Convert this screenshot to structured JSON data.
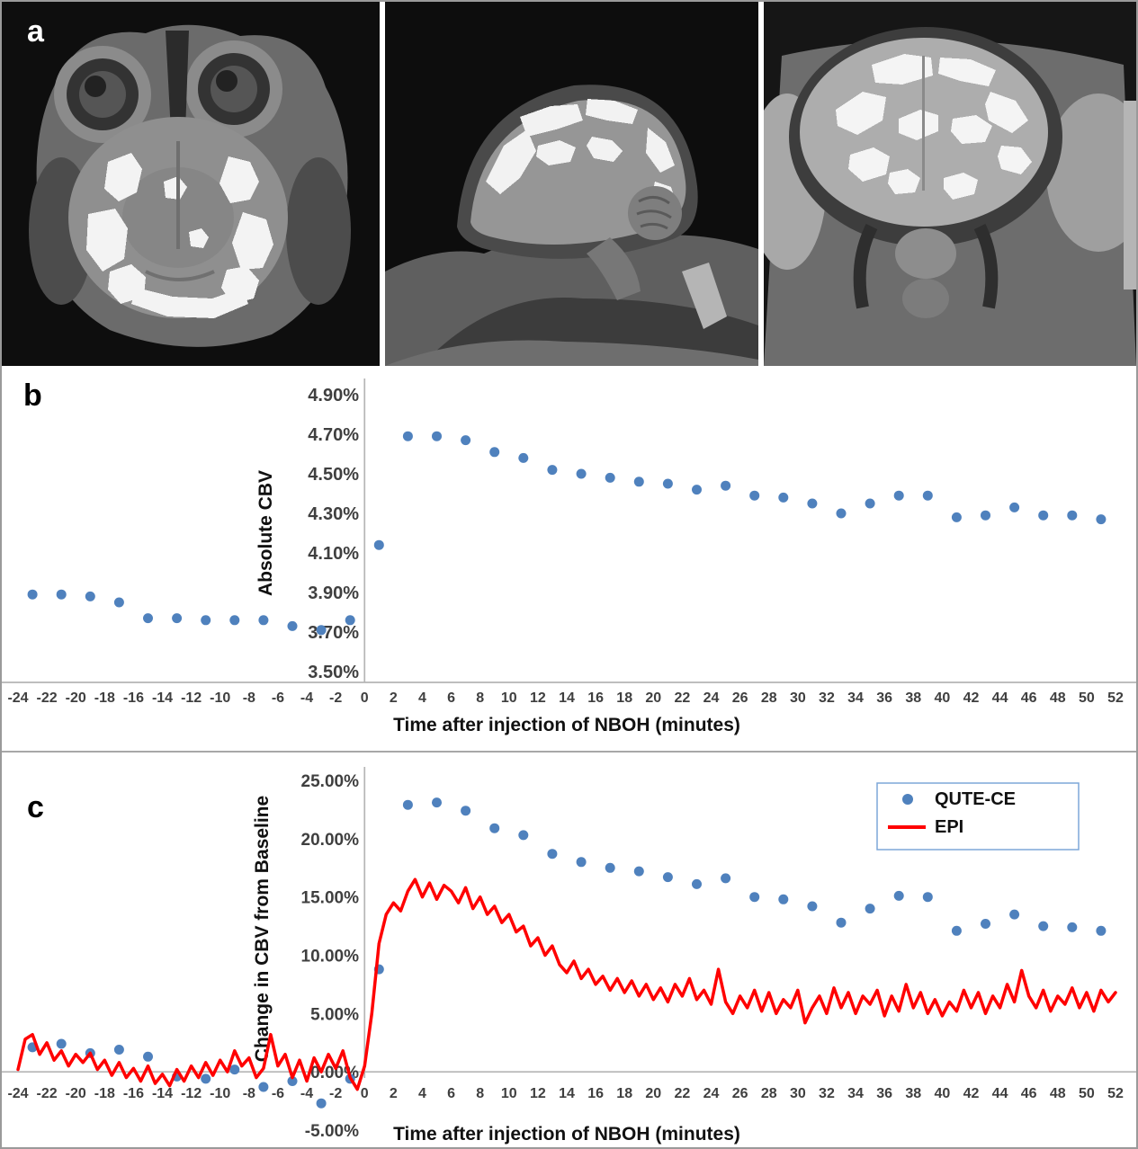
{
  "figure": {
    "panels": {
      "a": "a",
      "b": "b",
      "c": "c"
    }
  },
  "colors": {
    "marker_blue": "#4f81bd",
    "epi_red": "#ff0000",
    "axis_grey": "#b5b5b5",
    "tick_text": "#3f3f3f",
    "title_text": "#111111"
  },
  "chart_data": [
    {
      "id": "b",
      "type": "scatter",
      "title": "",
      "xlabel": "Time after injection of NBOH (minutes)",
      "ylabel": "Absolute CBV",
      "xlim": [
        -24,
        52
      ],
      "ylim": [
        3.5,
        4.9
      ],
      "grid": false,
      "xticks": [
        -24,
        -22,
        -20,
        -18,
        -16,
        -14,
        -12,
        -10,
        -8,
        -6,
        -4,
        -2,
        0,
        2,
        4,
        6,
        8,
        10,
        12,
        14,
        16,
        18,
        20,
        22,
        24,
        26,
        28,
        30,
        32,
        34,
        36,
        38,
        40,
        42,
        44,
        46,
        48,
        50,
        52
      ],
      "ytick_values": [
        4.9,
        4.7,
        4.5,
        4.3,
        4.1,
        3.9,
        3.7,
        3.5
      ],
      "ytick_labels": [
        "4.90%",
        "4.70%",
        "4.50%",
        "4.30%",
        "4.10%",
        "3.90%",
        "3.70%",
        "3.50%"
      ],
      "series": [
        {
          "name": "Absolute CBV",
          "type": "scatter",
          "color": "#4f81bd",
          "x": [
            -23,
            -21,
            -19,
            -17,
            -15,
            -13,
            -11,
            -9,
            -7,
            -5,
            -3,
            -1,
            1,
            3,
            5,
            7,
            9,
            11,
            13,
            15,
            17,
            19,
            21,
            23,
            25,
            27,
            29,
            31,
            33,
            35,
            37,
            39,
            41,
            43,
            45,
            47,
            49,
            51
          ],
          "y": [
            3.89,
            3.89,
            3.88,
            3.85,
            3.77,
            3.77,
            3.76,
            3.76,
            3.76,
            3.73,
            3.71,
            3.76,
            4.14,
            4.69,
            4.69,
            4.67,
            4.61,
            4.58,
            4.52,
            4.5,
            4.48,
            4.46,
            4.45,
            4.42,
            4.44,
            4.39,
            4.38,
            4.35,
            4.3,
            4.35,
            4.39,
            4.39,
            4.28,
            4.29,
            4.33,
            4.29,
            4.29,
            4.27
          ]
        }
      ]
    },
    {
      "id": "c",
      "type": "scatter+line",
      "title": "",
      "xlabel": "Time after injection of NBOH (minutes)",
      "ylabel": "Change in CBV from Baseline",
      "xlim": [
        -24,
        52
      ],
      "ylim": [
        -5,
        25
      ],
      "grid": false,
      "xticks": [
        -24,
        -22,
        -20,
        -18,
        -16,
        -14,
        -12,
        -10,
        -8,
        -6,
        -4,
        -2,
        0,
        2,
        4,
        6,
        8,
        10,
        12,
        14,
        16,
        18,
        20,
        22,
        24,
        26,
        28,
        30,
        32,
        34,
        36,
        38,
        40,
        42,
        44,
        46,
        48,
        50,
        52
      ],
      "ytick_values": [
        25,
        20,
        15,
        10,
        5,
        0,
        -5
      ],
      "ytick_labels": [
        "25.00%",
        "20.00%",
        "15.00%",
        "10.00%",
        "5.00%",
        "0.00%",
        "-5.00%"
      ],
      "legend": {
        "position": "top-right",
        "entries": [
          {
            "label": "QUTE-CE",
            "marker": "dot",
            "color": "#4f81bd"
          },
          {
            "label": "EPI",
            "marker": "line",
            "color": "#ff0000"
          }
        ]
      },
      "series": [
        {
          "name": "QUTE-CE",
          "type": "scatter",
          "color": "#4f81bd",
          "x": [
            -23,
            -21,
            -19,
            -17,
            -15,
            -13,
            -11,
            -9,
            -7,
            -5,
            -3,
            -1,
            1,
            3,
            5,
            7,
            9,
            11,
            13,
            15,
            17,
            19,
            21,
            23,
            25,
            27,
            29,
            31,
            33,
            35,
            37,
            39,
            41,
            43,
            45,
            47,
            49,
            51
          ],
          "y": [
            2.1,
            2.4,
            1.6,
            1.9,
            1.3,
            -0.4,
            -0.6,
            0.2,
            -1.3,
            -0.8,
            -2.7,
            -0.6,
            8.8,
            22.9,
            23.1,
            22.4,
            20.9,
            20.3,
            18.7,
            18.0,
            17.5,
            17.2,
            16.7,
            16.1,
            16.6,
            15.0,
            14.8,
            14.2,
            12.8,
            14.0,
            15.1,
            15.0,
            12.1,
            12.7,
            13.5,
            12.5,
            12.4,
            12.1
          ]
        },
        {
          "name": "EPI",
          "type": "line",
          "color": "#ff0000",
          "x_start": -24,
          "x_step": 0.5,
          "y": [
            0.2,
            2.8,
            3.2,
            1.5,
            2.5,
            1.0,
            1.8,
            0.5,
            1.5,
            0.8,
            1.6,
            0.2,
            1.0,
            -0.3,
            0.8,
            -0.5,
            0.3,
            -0.8,
            0.5,
            -1.0,
            -0.2,
            -1.2,
            0.2,
            -0.8,
            0.5,
            -0.5,
            0.8,
            -0.3,
            1.0,
            0.0,
            1.8,
            0.5,
            1.2,
            -0.5,
            0.3,
            3.2,
            0.5,
            1.5,
            -0.5,
            1.0,
            -0.8,
            1.2,
            0.0,
            1.5,
            0.3,
            1.8,
            -0.5,
            -1.5,
            0.5,
            5.0,
            11.0,
            13.5,
            14.5,
            13.8,
            15.5,
            16.5,
            15.0,
            16.2,
            14.8,
            16.0,
            15.5,
            14.5,
            15.8,
            14.0,
            15.0,
            13.5,
            14.2,
            12.8,
            13.5,
            12.0,
            12.5,
            10.8,
            11.5,
            10.0,
            10.8,
            9.2,
            8.5,
            9.5,
            8.0,
            8.8,
            7.5,
            8.2,
            7.0,
            8.0,
            6.8,
            7.8,
            6.5,
            7.5,
            6.2,
            7.2,
            6.0,
            7.5,
            6.5,
            8.0,
            6.2,
            7.0,
            5.8,
            8.8,
            6.0,
            5.0,
            6.5,
            5.5,
            7.0,
            5.2,
            6.8,
            5.0,
            6.2,
            5.5,
            7.0,
            4.2,
            5.5,
            6.5,
            5.0,
            7.2,
            5.5,
            6.8,
            5.0,
            6.5,
            5.8,
            7.0,
            4.8,
            6.5,
            5.2,
            7.5,
            5.5,
            6.8,
            5.0,
            6.2,
            4.8,
            6.0,
            5.2,
            7.0,
            5.5,
            6.8,
            5.0,
            6.5,
            5.5,
            7.5,
            6.0,
            8.7,
            6.5,
            5.5,
            7.0,
            5.2,
            6.5,
            5.8,
            7.2,
            5.5,
            6.8,
            5.2,
            7.0,
            6.0,
            6.8
          ]
        }
      ]
    }
  ]
}
